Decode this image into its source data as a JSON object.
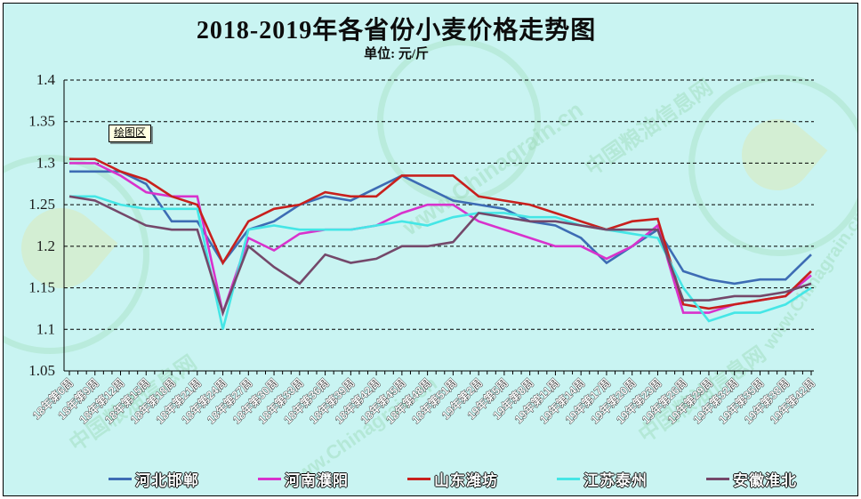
{
  "header": {
    "title": "2018-2019年各省份小麦价格走势图",
    "subtitle": "单位: 元/斤"
  },
  "plot_area_label": "绘图区",
  "watermark": {
    "text_en": "www.Chinagrain.cn",
    "text_cn": "中国粮油信息网"
  },
  "chart_data": {
    "type": "line",
    "title": "2018-2019年各省份小麦价格走势图",
    "unit_label": "单位: 元/斤",
    "grid": true,
    "legend_position": "bottom",
    "ylim": [
      1.05,
      1.4
    ],
    "ytick_values": [
      1.4,
      1.35,
      1.3,
      1.25,
      1.2,
      1.15,
      1.1,
      1.05
    ],
    "ytick_labels": [
      "1.4",
      "1.35",
      "1.3",
      "1.25",
      "1.2",
      "1.15",
      "1.1",
      "1.05"
    ],
    "categories": [
      "18年第6周",
      "18年第9周",
      "18年第12周",
      "18年第15周",
      "18年第18周",
      "18年第21周",
      "18年第24周",
      "18年第27周",
      "18年第30周",
      "18年第33周",
      "18年第36周",
      "18年第39周",
      "18年第42周",
      "18年第45周",
      "18年第48周",
      "18年第51周",
      "19年第2周",
      "19年第5周",
      "19年第8周",
      "19年第11周",
      "19年第14周",
      "19年第17周",
      "19年第20周",
      "19年第23周",
      "19年第26周",
      "19年第29周",
      "19年第32周",
      "19年第35周",
      "19年第38周",
      "19年第42周"
    ],
    "series": [
      {
        "name": "河北邯郸",
        "id": "hebei-handan",
        "color": "#3d6cb4",
        "values": [
          1.29,
          1.29,
          1.29,
          1.275,
          1.23,
          1.23,
          1.18,
          1.22,
          1.23,
          1.25,
          1.26,
          1.255,
          1.27,
          1.285,
          1.27,
          1.255,
          1.25,
          1.245,
          1.23,
          1.225,
          1.21,
          1.18,
          1.2,
          1.22,
          1.17,
          1.16,
          1.155,
          1.16,
          1.16,
          1.19
        ]
      },
      {
        "name": "河南濮阳",
        "id": "henan-puyang",
        "color": "#d832cc",
        "values": [
          1.3,
          1.3,
          1.285,
          1.265,
          1.26,
          1.26,
          1.12,
          1.21,
          1.195,
          1.215,
          1.22,
          1.22,
          1.225,
          1.24,
          1.25,
          1.25,
          1.23,
          1.22,
          1.21,
          1.2,
          1.2,
          1.185,
          1.2,
          1.225,
          1.12,
          1.12,
          1.13,
          1.135,
          1.14,
          1.165
        ]
      },
      {
        "name": "山东潍坊",
        "id": "shandong-weifang",
        "color": "#c8201d",
        "values": [
          1.305,
          1.305,
          1.29,
          1.28,
          1.26,
          1.25,
          1.18,
          1.23,
          1.245,
          1.25,
          1.265,
          1.26,
          1.26,
          1.285,
          1.285,
          1.285,
          1.26,
          1.255,
          1.25,
          1.24,
          1.23,
          1.22,
          1.23,
          1.233,
          1.13,
          1.125,
          1.13,
          1.135,
          1.14,
          1.17
        ]
      },
      {
        "name": "江苏泰州",
        "id": "jiangsu-taizhou",
        "color": "#45e6e6",
        "values": [
          1.26,
          1.26,
          1.25,
          1.245,
          1.245,
          1.245,
          1.1,
          1.22,
          1.225,
          1.22,
          1.22,
          1.22,
          1.225,
          1.23,
          1.225,
          1.235,
          1.24,
          1.24,
          1.235,
          1.235,
          1.225,
          1.22,
          1.215,
          1.21,
          1.15,
          1.11,
          1.12,
          1.12,
          1.13,
          1.15
        ]
      },
      {
        "name": "安徽淮北",
        "id": "anhui-huaibei",
        "color": "#74486a",
        "values": [
          1.26,
          1.255,
          1.24,
          1.225,
          1.22,
          1.22,
          1.12,
          1.2,
          1.175,
          1.155,
          1.19,
          1.18,
          1.185,
          1.2,
          1.2,
          1.205,
          1.24,
          1.235,
          1.23,
          1.23,
          1.225,
          1.22,
          1.22,
          1.22,
          1.135,
          1.135,
          1.14,
          1.14,
          1.145,
          1.155
        ]
      }
    ]
  }
}
